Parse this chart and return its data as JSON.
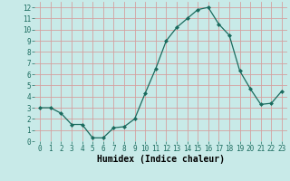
{
  "x": [
    0,
    1,
    2,
    3,
    4,
    5,
    6,
    7,
    8,
    9,
    10,
    11,
    12,
    13,
    14,
    15,
    16,
    17,
    18,
    19,
    20,
    21,
    22,
    23
  ],
  "y": [
    3,
    3,
    2.5,
    1.5,
    1.5,
    0.3,
    0.3,
    1.2,
    1.3,
    2.0,
    4.3,
    6.5,
    9.0,
    10.2,
    11.0,
    11.8,
    12.0,
    10.5,
    9.5,
    6.3,
    4.7,
    3.3,
    3.4,
    4.5
  ],
  "line_color": "#1a6b5e",
  "marker": "D",
  "marker_size": 2,
  "bg_color": "#c8eae8",
  "grid_color": "#d4a0a0",
  "xlabel": "Humidex (Indice chaleur)",
  "xlim": [
    -0.5,
    23.5
  ],
  "ylim": [
    0,
    12.5
  ],
  "yticks": [
    0,
    1,
    2,
    3,
    4,
    5,
    6,
    7,
    8,
    9,
    10,
    11,
    12
  ],
  "xticks": [
    0,
    1,
    2,
    3,
    4,
    5,
    6,
    7,
    8,
    9,
    10,
    11,
    12,
    13,
    14,
    15,
    16,
    17,
    18,
    19,
    20,
    21,
    22,
    23
  ],
  "tick_fontsize": 5.5,
  "label_fontsize": 7
}
